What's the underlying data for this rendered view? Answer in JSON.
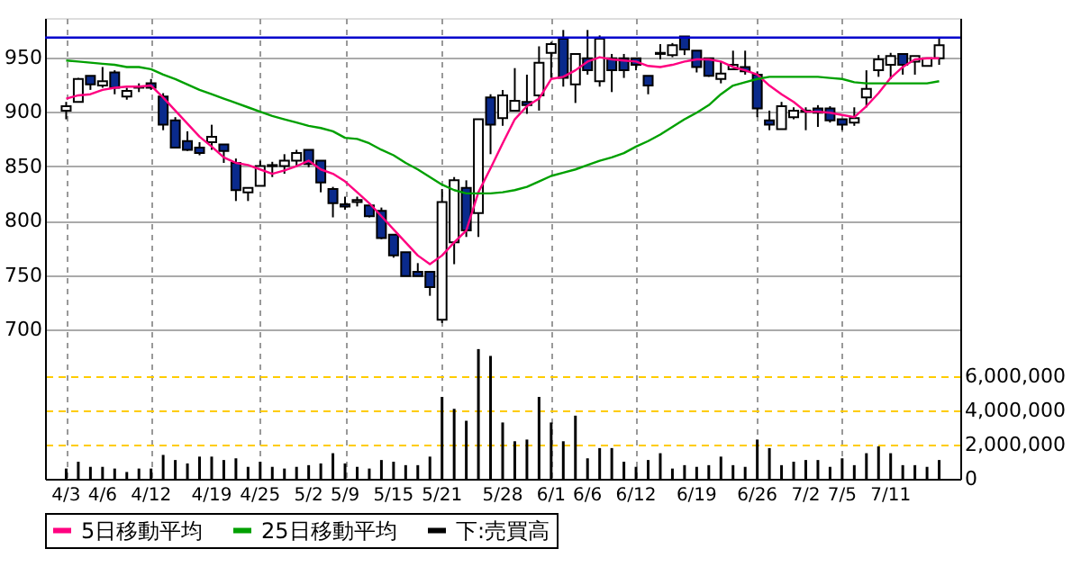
{
  "chart_data": {
    "type": "candlestick",
    "categories": [
      "4/3",
      null,
      null,
      "4/6",
      null,
      null,
      null,
      "4/12",
      null,
      null,
      null,
      null,
      "4/19",
      null,
      null,
      null,
      "4/25",
      null,
      null,
      null,
      "5/2",
      null,
      null,
      "5/9",
      null,
      null,
      null,
      "5/15",
      null,
      null,
      null,
      "5/21",
      null,
      null,
      null,
      null,
      "5/28",
      null,
      null,
      null,
      "6/1",
      null,
      null,
      "6/6",
      null,
      null,
      null,
      "6/12",
      null,
      null,
      null,
      null,
      "6/19",
      null,
      null,
      null,
      null,
      "6/26",
      null,
      null,
      null,
      "7/2",
      null,
      null,
      "7/5",
      null,
      null,
      null,
      "7/11",
      null,
      null,
      null,
      null
    ],
    "ohlc": [
      [
        901,
        909,
        893,
        905
      ],
      [
        909,
        931,
        909,
        930
      ],
      [
        933,
        933,
        920,
        925
      ],
      [
        924,
        941,
        922,
        928
      ],
      [
        936,
        938,
        916,
        922
      ],
      [
        914,
        922,
        911,
        919
      ],
      [
        922,
        926,
        918,
        923
      ],
      [
        926,
        930,
        920,
        922
      ],
      [
        914,
        917,
        883,
        888
      ],
      [
        892,
        895,
        867,
        867
      ],
      [
        873,
        882,
        864,
        865
      ],
      [
        867,
        872,
        860,
        862
      ],
      [
        872,
        888,
        865,
        877
      ],
      [
        870,
        870,
        853,
        864
      ],
      [
        853,
        857,
        818,
        828
      ],
      [
        826,
        830,
        818,
        830
      ],
      [
        832,
        855,
        832,
        850
      ],
      [
        850,
        854,
        840,
        851
      ],
      [
        850,
        861,
        843,
        855
      ],
      [
        855,
        865,
        850,
        862
      ],
      [
        865,
        865,
        849,
        852
      ],
      [
        855,
        855,
        826,
        835
      ],
      [
        829,
        831,
        803,
        816
      ],
      [
        815,
        822,
        810,
        813
      ],
      [
        817,
        822,
        813,
        819
      ],
      [
        814,
        814,
        803,
        804
      ],
      [
        809,
        812,
        783,
        784
      ],
      [
        787,
        787,
        766,
        768
      ],
      [
        771,
        771,
        749,
        749
      ],
      [
        753,
        761,
        749,
        749
      ],
      [
        753,
        753,
        731,
        739
      ],
      [
        709,
        829,
        706,
        817
      ],
      [
        780,
        840,
        760,
        837
      ],
      [
        830,
        837,
        785,
        791
      ],
      [
        807,
        893,
        785,
        893
      ],
      [
        913,
        916,
        861,
        888
      ],
      [
        894,
        920,
        887,
        915
      ],
      [
        901,
        940,
        901,
        910
      ],
      [
        909,
        934,
        898,
        906
      ],
      [
        915,
        960,
        901,
        945
      ],
      [
        954,
        964,
        931,
        962
      ],
      [
        967,
        975,
        923,
        931
      ],
      [
        925,
        953,
        908,
        953
      ],
      [
        949,
        975,
        934,
        938
      ],
      [
        928,
        970,
        923,
        967
      ],
      [
        949,
        953,
        918,
        938
      ],
      [
        949,
        953,
        931,
        938
      ],
      [
        949,
        949,
        938,
        943
      ],
      [
        933,
        933,
        916,
        924
      ],
      [
        953,
        962,
        948,
        954
      ],
      [
        952,
        963,
        950,
        961
      ],
      [
        969,
        969,
        952,
        957
      ],
      [
        956,
        956,
        936,
        941
      ],
      [
        949,
        949,
        932,
        933
      ],
      [
        930,
        946,
        926,
        935
      ],
      [
        939,
        956,
        939,
        943
      ],
      [
        941,
        956,
        934,
        937
      ],
      [
        934,
        937,
        895,
        903
      ],
      [
        892,
        901,
        883,
        888
      ],
      [
        884,
        909,
        884,
        905
      ],
      [
        895,
        904,
        893,
        901
      ],
      [
        901,
        904,
        883,
        900
      ],
      [
        903,
        906,
        886,
        899
      ],
      [
        903,
        905,
        890,
        892
      ],
      [
        893,
        893,
        883,
        888
      ],
      [
        890,
        904,
        887,
        894
      ],
      [
        913,
        938,
        904,
        921
      ],
      [
        938,
        952,
        932,
        948
      ],
      [
        943,
        954,
        930,
        951
      ],
      [
        953,
        953,
        934,
        943
      ],
      [
        946,
        951,
        934,
        951
      ],
      [
        942,
        949,
        942,
        949
      ],
      [
        949,
        968,
        943,
        961
      ]
    ],
    "series": [
      {
        "name": "5日移動平均",
        "type": "line",
        "color": "#ff0080",
        "values": [
          912,
          915,
          916,
          920,
          922,
          923,
          923,
          924,
          913,
          901,
          889,
          877,
          868,
          858,
          853,
          851,
          847,
          843,
          846,
          850,
          855,
          847,
          843,
          836,
          826,
          816,
          804,
          792,
          780,
          768,
          760,
          768,
          780,
          791,
          826,
          848,
          871,
          893,
          905,
          912,
          930,
          932,
          938,
          946,
          950,
          948,
          947,
          946,
          942,
          941,
          943,
          946,
          948,
          948,
          946,
          941,
          938,
          934,
          924,
          916,
          909,
          900,
          900,
          899,
          897,
          895,
          905,
          917,
          931,
          941,
          948,
          949,
          949
        ]
      },
      {
        "name": "25日移動平均",
        "type": "line",
        "color": "#00a000",
        "values": [
          947,
          946,
          945,
          944,
          943,
          941,
          941,
          939,
          934,
          930,
          925,
          920,
          916,
          912,
          908,
          904,
          900,
          896,
          893,
          890,
          887,
          885,
          882,
          876,
          875,
          871,
          865,
          860,
          853,
          847,
          840,
          833,
          828,
          825,
          825,
          825,
          826,
          828,
          831,
          836,
          841,
          844,
          847,
          851,
          855,
          858,
          862,
          868,
          873,
          879,
          886,
          893,
          899,
          906,
          916,
          924,
          927,
          930,
          932,
          932,
          932,
          932,
          932,
          931,
          930,
          927,
          926,
          926,
          926,
          926,
          926,
          926,
          928
        ]
      },
      {
        "name": "下:売買高",
        "type": "bar",
        "axis": "y2",
        "color": "#000000",
        "values": [
          600000,
          1000000,
          700000,
          700000,
          600000,
          400000,
          600000,
          600000,
          1400000,
          1100000,
          900000,
          1300000,
          1300000,
          1100000,
          1200000,
          700000,
          1000000,
          700000,
          600000,
          700000,
          800000,
          900000,
          1500000,
          900000,
          700000,
          600000,
          1100000,
          1000000,
          800000,
          800000,
          1300000,
          4800000,
          4100000,
          3400000,
          7600000,
          7200000,
          3300000,
          2200000,
          2300000,
          4800000,
          3300000,
          2200000,
          3700000,
          1200000,
          1800000,
          1800000,
          1000000,
          700000,
          1100000,
          1500000,
          600000,
          800000,
          700000,
          800000,
          1300000,
          800000,
          700000,
          2300000,
          1800000,
          800000,
          1000000,
          1100000,
          1100000,
          700000,
          1200000,
          800000,
          1500000,
          1900000,
          1500000,
          800000,
          800000,
          700000,
          1100000
        ]
      }
    ],
    "ylim": [
      563,
      986
    ],
    "yticks": [
      700,
      750,
      800,
      850,
      900,
      950
    ],
    "y2lim": [
      0,
      27000000
    ],
    "y2ticks": [
      0,
      {
        "value": 2000000,
        "label": "2,000,000"
      },
      {
        "value": 4000000,
        "label": "4,000,000"
      },
      {
        "value": 6000000,
        "label": "6,000,000"
      }
    ],
    "ref_lines": [
      {
        "axis": "y",
        "value": 968,
        "color": "#0000cc"
      }
    ],
    "grid": true,
    "legend": "bottom"
  }
}
